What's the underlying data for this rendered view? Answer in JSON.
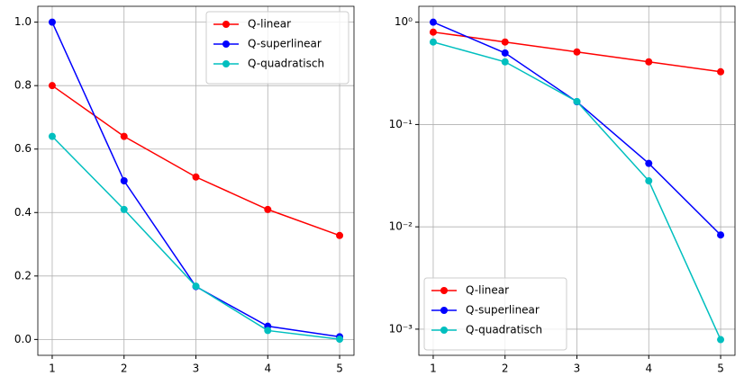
{
  "chart_data": [
    {
      "type": "line",
      "x": [
        1,
        2,
        3,
        4,
        5
      ],
      "series": [
        {
          "name": "Q-linear",
          "color": "#ff0000",
          "values": [
            0.8,
            0.64,
            0.512,
            0.4096,
            0.32768
          ]
        },
        {
          "name": "Q-superlinear",
          "color": "#0000ff",
          "values": [
            1.0,
            0.5,
            0.1667,
            0.04167,
            0.00833
          ]
        },
        {
          "name": "Q-quadratisch",
          "color": "#00bfbf",
          "values": [
            0.64,
            0.4096,
            0.1678,
            0.02815,
            0.00079
          ]
        }
      ],
      "xlim": [
        0.8,
        5.2
      ],
      "xticks": [
        1,
        2,
        3,
        4,
        5
      ],
      "ylim": [
        -0.05,
        1.05
      ],
      "yticks": [
        {
          "value": 0,
          "label": "0.0"
        },
        0.2,
        0.4,
        0.6,
        0.8,
        {
          "value": 1,
          "label": "1.0"
        }
      ],
      "grid": true,
      "legend": "upper right",
      "yscale": "linear"
    },
    {
      "type": "line",
      "x": [
        1,
        2,
        3,
        4,
        5
      ],
      "series": [
        {
          "name": "Q-linear",
          "color": "#ff0000",
          "values": [
            0.8,
            0.64,
            0.512,
            0.4096,
            0.32768
          ]
        },
        {
          "name": "Q-superlinear",
          "color": "#0000ff",
          "values": [
            1.0,
            0.5,
            0.1667,
            0.04167,
            0.00833
          ]
        },
        {
          "name": "Q-quadratisch",
          "color": "#00bfbf",
          "values": [
            0.64,
            0.4096,
            0.1678,
            0.02815,
            0.00079
          ]
        }
      ],
      "xlim": [
        0.8,
        5.2
      ],
      "xticks": [
        1,
        2,
        3,
        4,
        5
      ],
      "ylim": [
        0.000555,
        1.43
      ],
      "yticks": [
        {
          "value": 0.001,
          "label": "10⁻³"
        },
        {
          "value": 0.01,
          "label": "10⁻²"
        },
        {
          "value": 0.1,
          "label": "10⁻¹"
        },
        {
          "value": 1,
          "label": "10⁰"
        }
      ],
      "grid": true,
      "legend": "lower left",
      "yscale": "log"
    }
  ]
}
